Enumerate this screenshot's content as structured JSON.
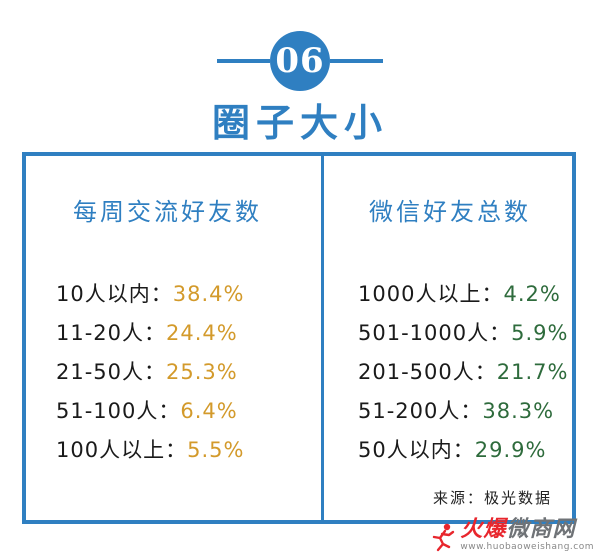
{
  "header": {
    "number": "06",
    "title": "圈子大小"
  },
  "left_column": {
    "title": "每周交流好友数",
    "rows": [
      {
        "label": "10人以内：",
        "value": "38.4%"
      },
      {
        "label": "11-20人：",
        "value": "24.4%"
      },
      {
        "label": "21-50人：",
        "value": "25.3%"
      },
      {
        "label": "51-100人：",
        "value": "6.4%"
      },
      {
        "label": "100人以上：",
        "value": "5.5%"
      }
    ]
  },
  "right_column": {
    "title": "微信好友总数",
    "rows": [
      {
        "label": "1000人以上：",
        "value": "4.2%"
      },
      {
        "label": "501-1000人：",
        "value": "5.9%"
      },
      {
        "label": "201-500人：",
        "value": "21.7%"
      },
      {
        "label": "51-200人：",
        "value": "38.3%"
      },
      {
        "label": "50人以内：",
        "value": "29.9%"
      }
    ]
  },
  "source": "来源：极光数据",
  "watermark": {
    "main_red": "火爆",
    "main_gray": "微商网",
    "url": "www.huobaoweishang.com"
  },
  "colors": {
    "accent_blue": "#2f7fc1",
    "left_value": "#d39a2b",
    "right_value": "#2e6b3c"
  }
}
